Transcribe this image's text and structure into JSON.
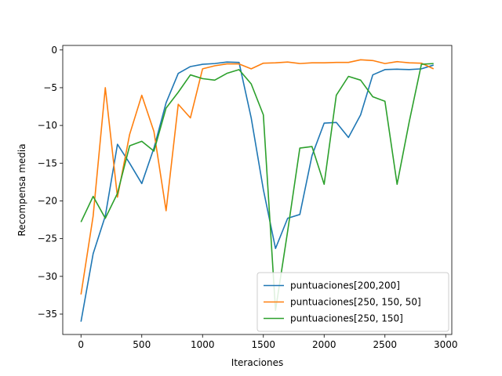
{
  "chart_data": {
    "type": "line",
    "xlabel": "Iteraciones",
    "ylabel": "Recompensa media",
    "xlim": [
      -150,
      3050
    ],
    "ylim": [
      -37.7,
      0.6
    ],
    "xticks": [
      0,
      500,
      1000,
      1500,
      2000,
      2500,
      3000
    ],
    "yticks": [
      0,
      -5,
      -10,
      -15,
      -20,
      -25,
      -30,
      -35
    ],
    "grid": false,
    "legend_position": "lower-right",
    "series": [
      {
        "name": "puntuaciones[200,200]",
        "color": "#1f77b4",
        "x": [
          0,
          100,
          200,
          300,
          400,
          500,
          600,
          700,
          800,
          900,
          1000,
          1100,
          1200,
          1300,
          1400,
          1500,
          1600,
          1700,
          1800,
          1900,
          2000,
          2100,
          2200,
          2300,
          2400,
          2500,
          2600,
          2700,
          2800,
          2900
        ],
        "y": [
          -36.0,
          -27.0,
          -22.0,
          -12.5,
          -15.0,
          -17.7,
          -13.0,
          -7.0,
          -3.1,
          -2.2,
          -1.9,
          -1.8,
          -1.6,
          -1.65,
          -9.0,
          -18.5,
          -26.3,
          -22.3,
          -21.8,
          -14.0,
          -9.7,
          -9.6,
          -11.6,
          -8.6,
          -3.3,
          -2.6,
          -2.55,
          -2.6,
          -2.5,
          -2.0
        ]
      },
      {
        "name": "puntuaciones[250, 150, 50]",
        "color": "#ff7f0e",
        "x": [
          0,
          100,
          200,
          300,
          400,
          500,
          600,
          700,
          800,
          900,
          1000,
          1100,
          1200,
          1300,
          1400,
          1500,
          1600,
          1700,
          1800,
          1900,
          2000,
          2100,
          2200,
          2300,
          2400,
          2500,
          2600,
          2700,
          2800,
          2900
        ],
        "y": [
          -32.4,
          -22.0,
          -5.0,
          -19.5,
          -11.2,
          -6.0,
          -10.8,
          -21.3,
          -7.2,
          -9.0,
          -2.5,
          -2.1,
          -1.85,
          -1.85,
          -2.5,
          -1.75,
          -1.7,
          -1.6,
          -1.8,
          -1.7,
          -1.7,
          -1.65,
          -1.65,
          -1.3,
          -1.4,
          -1.8,
          -1.55,
          -1.7,
          -1.75,
          -2.5
        ]
      },
      {
        "name": "puntuaciones[250, 150]",
        "color": "#2ca02c",
        "x": [
          0,
          100,
          200,
          300,
          400,
          500,
          600,
          700,
          800,
          900,
          1000,
          1100,
          1200,
          1300,
          1400,
          1500,
          1600,
          1700,
          1800,
          1900,
          2000,
          2100,
          2200,
          2300,
          2400,
          2500,
          2600,
          2700,
          2800,
          2900
        ],
        "y": [
          -22.8,
          -19.4,
          -22.3,
          -19.0,
          -12.7,
          -12.1,
          -13.4,
          -7.7,
          -5.6,
          -3.3,
          -3.8,
          -4.0,
          -3.1,
          -2.6,
          -4.5,
          -8.6,
          -34.5,
          -24.0,
          -13.0,
          -12.8,
          -17.8,
          -6.0,
          -3.5,
          -4.0,
          -6.2,
          -6.8,
          -17.8,
          -9.5,
          -1.9,
          -1.8
        ]
      }
    ]
  }
}
